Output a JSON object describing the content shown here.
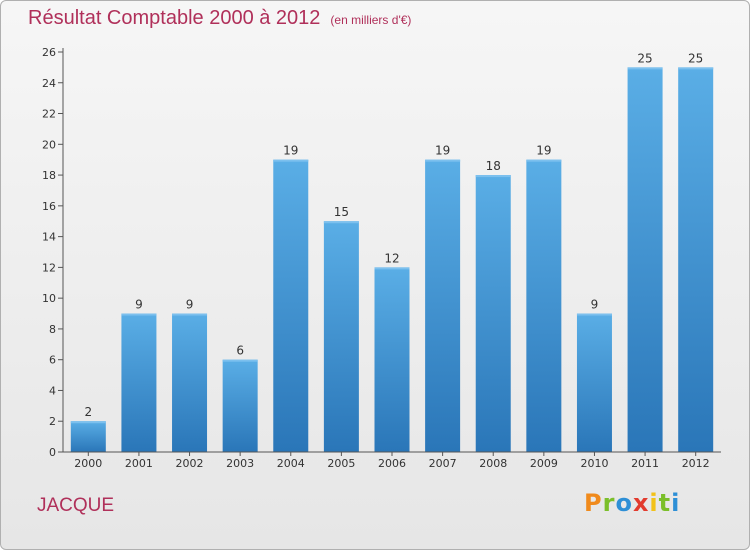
{
  "chart_data": {
    "type": "bar",
    "title": "Résultat Comptable 2000 à 2012",
    "subtitle": "(en milliers d'€)",
    "categories": [
      "2000",
      "2001",
      "2002",
      "2003",
      "2004",
      "2005",
      "2006",
      "2007",
      "2008",
      "2009",
      "2010",
      "2011",
      "2012"
    ],
    "values": [
      2,
      9,
      9,
      6,
      19,
      15,
      12,
      19,
      18,
      19,
      9,
      25,
      25
    ],
    "ylim": [
      0,
      26
    ],
    "yticks": [
      0,
      2,
      4,
      6,
      8,
      10,
      12,
      14,
      16,
      18,
      20,
      22,
      24,
      26
    ],
    "xlabel": "",
    "ylabel": "",
    "grid": false,
    "bar_color": "#3f95d6",
    "bar_color_dark": "#2a76b8"
  },
  "commune": "JACQUE",
  "brand": {
    "letters": [
      "P",
      "r",
      "o",
      "x",
      "i",
      "t",
      "i"
    ],
    "colors": [
      "#f08a1c",
      "#7bbf2a",
      "#2d8fd6",
      "#e23b2e",
      "#f2c21a",
      "#7bbf2a",
      "#2d8fd6"
    ]
  }
}
